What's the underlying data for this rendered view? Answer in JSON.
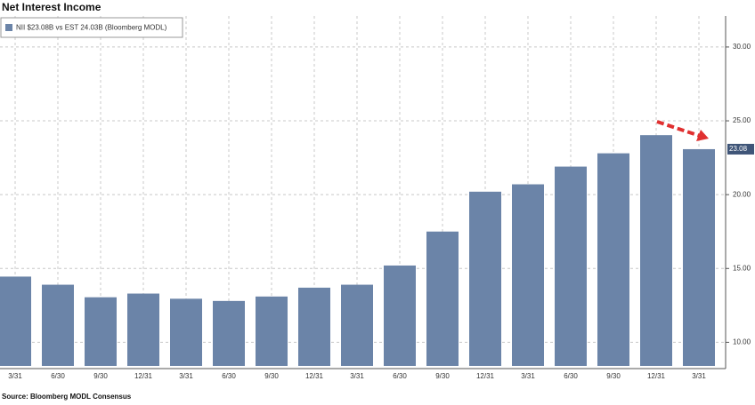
{
  "chart_data": {
    "type": "bar",
    "title": "Net Interest Income",
    "legend": "NII $23.08B vs EST 24.03B (Bloomberg MODL)",
    "source": "Source: Bloomberg MODL Consensus",
    "categories": [
      "3/31",
      "6/30",
      "9/30",
      "12/31",
      "3/31",
      "6/30",
      "9/30",
      "12/31",
      "3/31",
      "6/30",
      "9/30",
      "12/31",
      "3/31",
      "6/30",
      "9/30",
      "12/31",
      "3/31"
    ],
    "values": [
      14.45,
      13.9,
      13.05,
      13.3,
      12.95,
      12.8,
      13.1,
      13.7,
      13.9,
      15.2,
      17.5,
      20.2,
      20.7,
      21.9,
      22.8,
      24.03,
      23.08
    ],
    "value_labels": [
      null,
      null,
      null,
      null,
      null,
      null,
      null,
      null,
      null,
      null,
      null,
      null,
      null,
      null,
      null,
      null,
      "23.08"
    ],
    "color": "#6b84a8",
    "ylim": [
      8.4,
      32.1
    ],
    "yticks": [
      {
        "value": 10,
        "label": "10.00"
      },
      {
        "value": 15,
        "label": "15.00"
      },
      {
        "value": 20,
        "label": "20.00"
      },
      {
        "value": 25,
        "label": "25.00"
      },
      {
        "value": 30,
        "label": "30.00"
      }
    ],
    "grid": true
  }
}
